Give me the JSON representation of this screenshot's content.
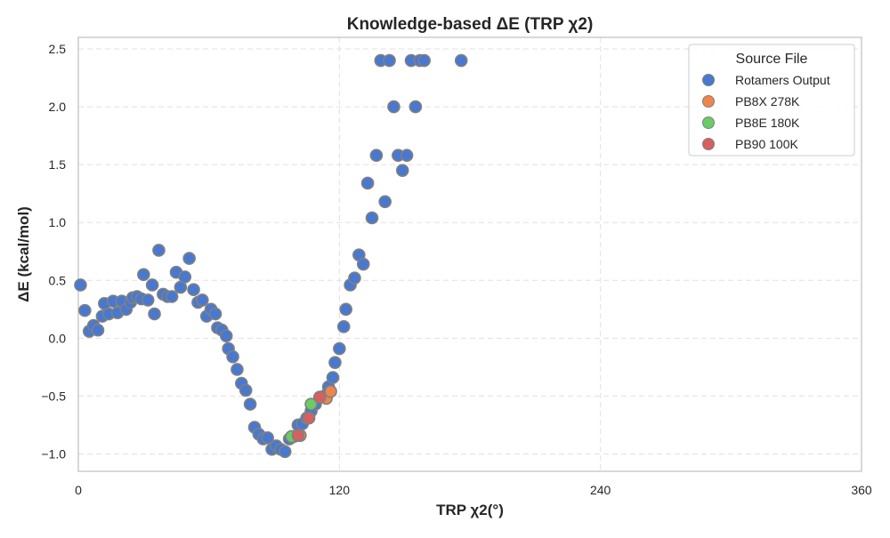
{
  "chart_data": {
    "type": "scatter",
    "title": "Knowledge-based ΔE (TRP χ2)",
    "xlabel": "TRP χ2(°)",
    "ylabel": "ΔE (kcal/mol)",
    "xlim": [
      0,
      360
    ],
    "ylim": [
      -1.15,
      2.6
    ],
    "xticks": [
      0,
      120,
      240,
      360
    ],
    "yticks": [
      -1.0,
      -0.5,
      0.0,
      0.5,
      1.0,
      1.5,
      2.0,
      2.5
    ],
    "grid": true,
    "legend": {
      "title": "Source File",
      "placement": "top-right"
    },
    "series": [
      {
        "name": "Rotamers Output",
        "color": "#4878d0",
        "edge_color": "#808080",
        "points": [
          [
            1,
            0.46
          ],
          [
            3,
            0.24
          ],
          [
            5,
            0.06
          ],
          [
            7,
            0.11
          ],
          [
            9,
            0.07
          ],
          [
            11,
            0.19
          ],
          [
            12,
            0.3
          ],
          [
            14,
            0.21
          ],
          [
            16,
            0.32
          ],
          [
            18,
            0.22
          ],
          [
            20,
            0.32
          ],
          [
            22,
            0.25
          ],
          [
            24,
            0.31
          ],
          [
            25,
            0.35
          ],
          [
            27,
            0.36
          ],
          [
            29,
            0.34
          ],
          [
            30,
            0.55
          ],
          [
            32,
            0.33
          ],
          [
            34,
            0.46
          ],
          [
            35,
            0.21
          ],
          [
            37,
            0.76
          ],
          [
            39,
            0.38
          ],
          [
            41,
            0.36
          ],
          [
            43,
            0.36
          ],
          [
            45,
            0.57
          ],
          [
            47,
            0.44
          ],
          [
            49,
            0.53
          ],
          [
            51,
            0.69
          ],
          [
            53,
            0.42
          ],
          [
            55,
            0.31
          ],
          [
            57,
            0.33
          ],
          [
            59,
            0.19
          ],
          [
            61,
            0.25
          ],
          [
            63,
            0.21
          ],
          [
            64,
            0.09
          ],
          [
            66,
            0.07
          ],
          [
            68,
            0.02
          ],
          [
            69,
            -0.09
          ],
          [
            71,
            -0.16
          ],
          [
            73,
            -0.27
          ],
          [
            75,
            -0.39
          ],
          [
            77,
            -0.45
          ],
          [
            79,
            -0.57
          ],
          [
            81,
            -0.77
          ],
          [
            83,
            -0.83
          ],
          [
            85,
            -0.87
          ],
          [
            87,
            -0.86
          ],
          [
            89,
            -0.96
          ],
          [
            91,
            -0.93
          ],
          [
            93,
            -0.96
          ],
          [
            95,
            -0.98
          ],
          [
            97,
            -0.87
          ],
          [
            99,
            -0.85
          ],
          [
            101,
            -0.75
          ],
          [
            103,
            -0.74
          ],
          [
            105,
            -0.69
          ],
          [
            107,
            -0.63
          ],
          [
            109,
            -0.57
          ],
          [
            111,
            -0.51
          ],
          [
            113,
            -0.5
          ],
          [
            115,
            -0.42
          ],
          [
            117,
            -0.34
          ],
          [
            118,
            -0.21
          ],
          [
            120,
            -0.09
          ],
          [
            122,
            0.1
          ],
          [
            123,
            0.25
          ],
          [
            125,
            0.46
          ],
          [
            127,
            0.52
          ],
          [
            129,
            0.72
          ],
          [
            131,
            0.64
          ],
          [
            133,
            1.34
          ],
          [
            135,
            1.04
          ],
          [
            137,
            1.58
          ],
          [
            139,
            2.4
          ],
          [
            141,
            1.18
          ],
          [
            143,
            2.4
          ],
          [
            145,
            2.0
          ],
          [
            147,
            1.58
          ],
          [
            149,
            1.45
          ],
          [
            151,
            1.58
          ],
          [
            153,
            2.4
          ],
          [
            155,
            2.0
          ],
          [
            157,
            2.4
          ],
          [
            159,
            2.4
          ],
          [
            176,
            2.4
          ]
        ]
      },
      {
        "name": "PB8X 278K",
        "color": "#ee854a",
        "edge_color": "#808080",
        "points": [
          [
            102,
            -0.84
          ],
          [
            114,
            -0.52
          ],
          [
            116,
            -0.46
          ]
        ]
      },
      {
        "name": "PB8E 180K",
        "color": "#6acc64",
        "edge_color": "#808080",
        "points": [
          [
            98,
            -0.85
          ],
          [
            107,
            -0.57
          ]
        ]
      },
      {
        "name": "PB90 100K",
        "color": "#d65f5f",
        "edge_color": "#808080",
        "points": [
          [
            101,
            -0.84
          ],
          [
            106,
            -0.69
          ],
          [
            111,
            -0.51
          ]
        ]
      }
    ]
  }
}
